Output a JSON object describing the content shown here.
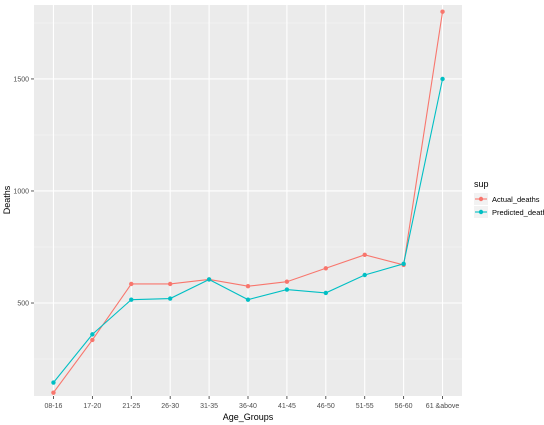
{
  "chart_data": {
    "type": "line",
    "xlabel": "Age_Groups",
    "ylabel": "Deaths",
    "categories": [
      "08-16",
      "17-20",
      "21-25",
      "26-30",
      "31-35",
      "36-40",
      "41-45",
      "46-50",
      "51-55",
      "56-60",
      "61 &above"
    ],
    "y_ticks": [
      500,
      1000,
      1500
    ],
    "ylim": [
      85,
      1830
    ],
    "grid": true,
    "legend_position": "right",
    "legend_title": "sup",
    "series": [
      {
        "name": "Actual_deaths",
        "color": "#F8766D",
        "values": [
          100,
          335,
          585,
          585,
          605,
          575,
          595,
          655,
          715,
          670,
          1800
        ]
      },
      {
        "name": "Predicted_deaths",
        "color": "#00BFC4",
        "values": [
          145,
          360,
          515,
          520,
          605,
          515,
          560,
          545,
          625,
          675,
          1500
        ]
      }
    ]
  }
}
